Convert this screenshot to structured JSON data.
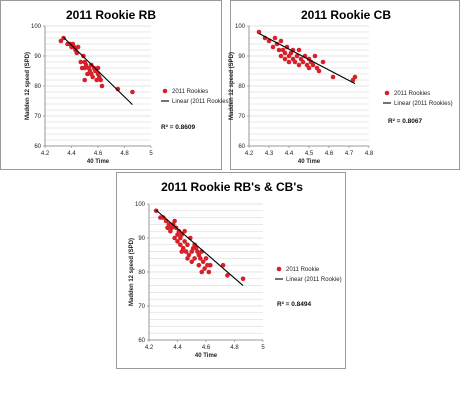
{
  "colors": {
    "point": "#d6202a",
    "trend": "#000000",
    "grid": "#c8c8c8",
    "axis": "#7f7f7f"
  },
  "chart_data": [
    {
      "type": "scatter",
      "title": "2011 Rookie RB",
      "xlabel": "40 Time",
      "ylabel": "Madden 12 speed (SPD)",
      "xlim": [
        4.2,
        5
      ],
      "ylim": [
        60,
        100
      ],
      "xticks": [
        "4.2",
        "4.4",
        "4.6",
        "4.8",
        "5"
      ],
      "yticks": [
        "60",
        "70",
        "80",
        "90",
        "100"
      ],
      "grid": true,
      "legend_position": "right",
      "series": [
        {
          "name": "2011 Rookies",
          "x": [
            4.32,
            4.34,
            4.37,
            4.39,
            4.4,
            4.41,
            4.42,
            4.43,
            4.44,
            4.45,
            4.47,
            4.48,
            4.49,
            4.5,
            4.5,
            4.51,
            4.52,
            4.53,
            4.54,
            4.55,
            4.55,
            4.56,
            4.57,
            4.58,
            4.59,
            4.6,
            4.6,
            4.61,
            4.62,
            4.63,
            4.5,
            4.75,
            4.86
          ],
          "y": [
            95,
            96,
            94,
            94,
            93,
            94,
            93,
            92,
            91,
            93,
            88,
            86,
            90,
            86,
            82,
            87,
            84,
            86,
            85,
            84,
            87,
            83,
            86,
            85,
            82,
            84,
            86,
            83,
            82,
            80,
            88,
            79,
            78
          ]
        },
        {
          "name": "Linear (2011 Rookies)",
          "trendline": {
            "x": [
              4.34,
              4.86
            ],
            "y": [
              96.2,
              73.8
            ]
          }
        }
      ],
      "annotation": "R² = 0.8609"
    },
    {
      "type": "scatter",
      "title": "2011 Rookie CB",
      "xlabel": "40 Time",
      "ylabel": "Madden 12 speed (SPD)",
      "xlim": [
        4.2,
        4.8
      ],
      "ylim": [
        60,
        100
      ],
      "xticks": [
        "4.2",
        "4.3",
        "4.4",
        "4.5",
        "4.6",
        "4.7",
        "4.8"
      ],
      "yticks": [
        "60",
        "70",
        "80",
        "90",
        "100"
      ],
      "grid": true,
      "legend_position": "right",
      "series": [
        {
          "name": "2011 Rookies",
          "x": [
            4.25,
            4.28,
            4.3,
            4.32,
            4.33,
            4.34,
            4.35,
            4.36,
            4.36,
            4.37,
            4.38,
            4.38,
            4.39,
            4.4,
            4.4,
            4.41,
            4.42,
            4.42,
            4.43,
            4.44,
            4.45,
            4.45,
            4.46,
            4.47,
            4.48,
            4.49,
            4.5,
            4.5,
            4.51,
            4.52,
            4.53,
            4.54,
            4.55,
            4.57,
            4.62,
            4.72,
            4.73
          ],
          "y": [
            98,
            96,
            95,
            93,
            96,
            94,
            92,
            90,
            95,
            92,
            91,
            89,
            93,
            90,
            88,
            91,
            89,
            92,
            88,
            90,
            87,
            92,
            89,
            88,
            90,
            87,
            86,
            89,
            88,
            87,
            90,
            86,
            85,
            88,
            83,
            82,
            83
          ]
        },
        {
          "name": "Linear (2011 Rookies)",
          "trendline": {
            "x": [
              4.25,
              4.73
            ],
            "y": [
              97.5,
              80.8
            ]
          }
        }
      ],
      "annotation": "R² = 0.8067"
    },
    {
      "type": "scatter",
      "title": "2011 Rookie RB's & CB's",
      "xlabel": "40 Time",
      "ylabel": "Madden 12 speed (SPD)",
      "xlim": [
        4.2,
        5
      ],
      "ylim": [
        60,
        100
      ],
      "xticks": [
        "4.2",
        "4.4",
        "4.6",
        "4.8",
        "5"
      ],
      "yticks": [
        "60",
        "70",
        "80",
        "90",
        "100"
      ],
      "grid": true,
      "legend_position": "right",
      "series": [
        {
          "name": "2011 Rookie",
          "x": [
            4.25,
            4.28,
            4.3,
            4.32,
            4.33,
            4.34,
            4.35,
            4.36,
            4.37,
            4.38,
            4.39,
            4.4,
            4.4,
            4.41,
            4.42,
            4.42,
            4.43,
            4.44,
            4.45,
            4.45,
            4.46,
            4.47,
            4.48,
            4.49,
            4.5,
            4.5,
            4.51,
            4.52,
            4.53,
            4.54,
            4.55,
            4.55,
            4.56,
            4.57,
            4.58,
            4.59,
            4.6,
            4.61,
            4.62,
            4.63,
            4.72,
            4.75,
            4.86,
            4.38,
            4.43,
            4.47,
            4.52,
            4.57
          ],
          "y": [
            98,
            96,
            96,
            95,
            93,
            94,
            92,
            93,
            94,
            90,
            93,
            89,
            91,
            92,
            88,
            90,
            91,
            87,
            89,
            92,
            86,
            88,
            85,
            90,
            86,
            83,
            87,
            84,
            87,
            86,
            85,
            82,
            84,
            86,
            83,
            81,
            84,
            82,
            80,
            82,
            82,
            79,
            78,
            95,
            86,
            84,
            88,
            80
          ]
        },
        {
          "name": "Linear (2011 Rookie)",
          "trendline": {
            "x": [
              4.25,
              4.86
            ],
            "y": [
              98.2,
              76.0
            ]
          }
        }
      ],
      "annotation": "R² = 0.8494"
    }
  ]
}
